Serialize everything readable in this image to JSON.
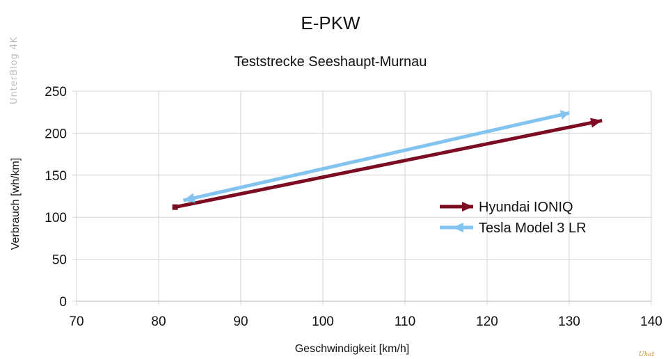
{
  "watermark": "UnterBlog 4K",
  "signature": "Uhat",
  "chart_data": {
    "type": "line",
    "title": "E-PKW",
    "subtitle": "Teststrecke Seeshaupt-Murnau",
    "xlabel": "Geschwindigkeit [km/h]",
    "ylabel": "Verbrauch [wh/km]",
    "xlim": [
      70,
      140
    ],
    "ylim": [
      0,
      250
    ],
    "xticks": [
      70,
      80,
      90,
      100,
      110,
      120,
      130,
      140
    ],
    "yticks": [
      0,
      50,
      100,
      150,
      200,
      250
    ],
    "grid": true,
    "legend_position": "right",
    "series": [
      {
        "name": "Hyundai IONIQ",
        "color": "#7b0c22",
        "marker": "arrow-end",
        "x": [
          82,
          134
        ],
        "y": [
          112,
          215
        ]
      },
      {
        "name": "Tesla Model 3 LR",
        "color": "#83c3f0",
        "marker": "arrow-start",
        "x": [
          83,
          130
        ],
        "y": [
          120,
          224
        ]
      }
    ]
  }
}
